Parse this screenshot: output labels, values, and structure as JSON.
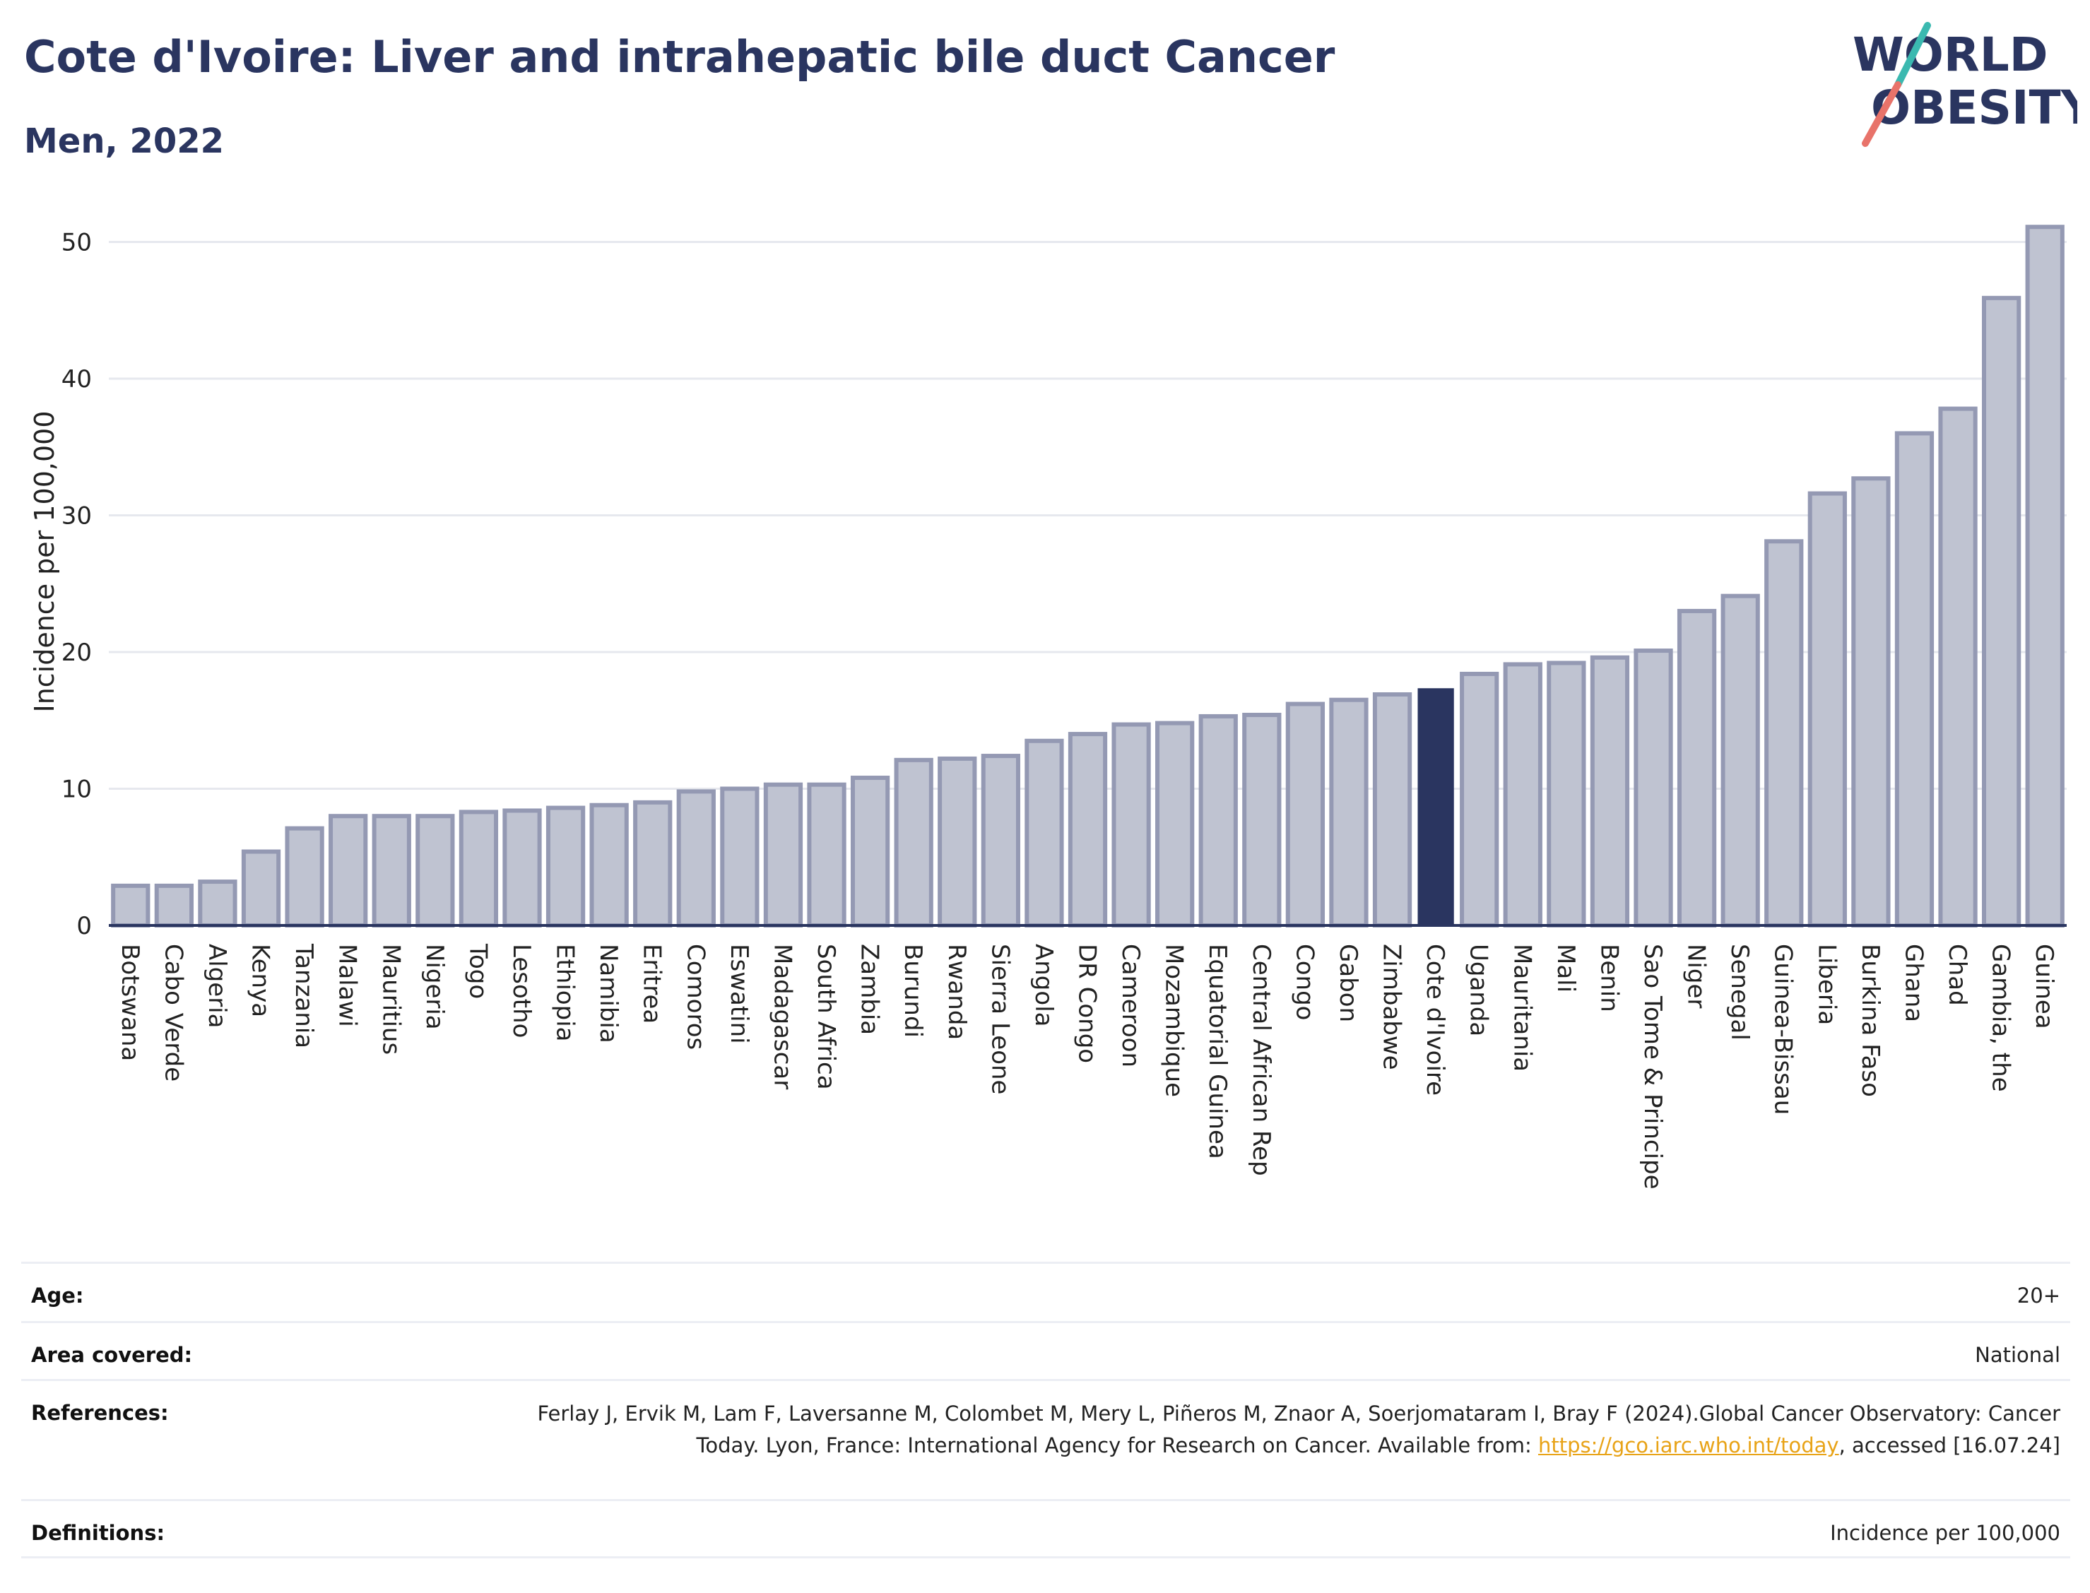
{
  "header": {
    "title": "Cote d'Ivoire: Liver and intrahepatic bile duct Cancer",
    "subtitle": "Men, 2022"
  },
  "logo": {
    "line1": "WORLD",
    "line2": "OBESITY"
  },
  "colors": {
    "bar": "#bfc3d1",
    "bar_border": "#9499b3",
    "highlight": "#2a3560",
    "grid": "#e6e8ee",
    "axis": "#2a3560"
  },
  "chart_data": {
    "type": "bar",
    "title": "Cote d'Ivoire: Liver and intrahepatic bile duct Cancer",
    "subtitle": "Men, 2022",
    "xlabel": "",
    "ylabel": "Incidence per 100,000",
    "ylim": [
      0,
      53
    ],
    "yticks": [
      0,
      10,
      20,
      30,
      40,
      50
    ],
    "grid": true,
    "highlight": "Cote d'Ivoire",
    "categories": [
      "Botswana",
      "Cabo Verde",
      "Algeria",
      "Kenya",
      "Tanzania",
      "Malawi",
      "Mauritius",
      "Nigeria",
      "Togo",
      "Lesotho",
      "Ethiopia",
      "Namibia",
      "Eritrea",
      "Comoros",
      "Eswatini",
      "Madagascar",
      "South Africa",
      "Zambia",
      "Burundi",
      "Rwanda",
      "Sierra Leone",
      "Angola",
      "DR Congo",
      "Cameroon",
      "Mozambique",
      "Equatorial Guinea",
      "Central African Rep",
      "Congo",
      "Gabon",
      "Zimbabwe",
      "Cote d'Ivoire",
      "Uganda",
      "Mauritania",
      "Mali",
      "Benin",
      "Sao Tome & Principe",
      "Niger",
      "Senegal",
      "Guinea-Bissau",
      "Liberia",
      "Burkina Faso",
      "Ghana",
      "Chad",
      "Gambia, the",
      "Guinea"
    ],
    "values": [
      2.9,
      2.9,
      3.2,
      5.4,
      7.1,
      8.0,
      8.0,
      8.0,
      8.3,
      8.4,
      8.6,
      8.8,
      9.0,
      9.8,
      10.0,
      10.3,
      10.3,
      10.8,
      12.1,
      12.2,
      12.4,
      13.5,
      14.0,
      14.7,
      14.8,
      15.3,
      15.4,
      16.2,
      16.5,
      16.9,
      17.3,
      18.4,
      19.1,
      19.2,
      19.6,
      20.1,
      23.0,
      24.1,
      28.1,
      31.6,
      32.7,
      36.0,
      37.8,
      45.9,
      51.1
    ]
  },
  "meta": {
    "age_label": "Age:",
    "age_value": "20+",
    "area_label": "Area covered:",
    "area_value": "National",
    "references_label": "References:",
    "references_text": "Ferlay J, Ervik M, Lam F, Laversanne M, Colombet M, Mery L, Piñeros M, Znaor A, Soerjomataram I, Bray F (2024).Global Cancer Observatory: Cancer Today. Lyon, France: International Agency for Research on Cancer. Available from: ",
    "references_link": "https://gco.iarc.who.int/today",
    "references_tail": ", accessed [16.07.24]",
    "definitions_label": "Definitions:",
    "definitions_value": "Incidence per 100,000"
  }
}
